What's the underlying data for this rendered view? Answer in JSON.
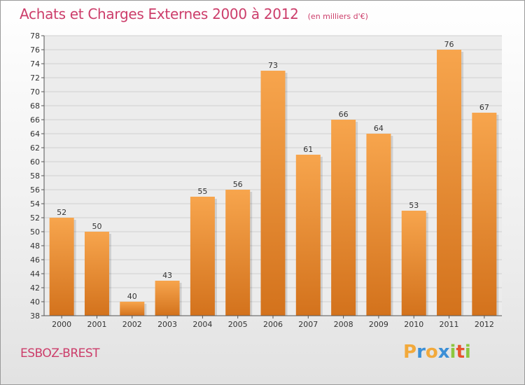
{
  "title": "Achats et Charges Externes 2000 à 2012",
  "unit": "(en milliers d'€)",
  "commune": "ESBOZ-BREST",
  "logo": {
    "text": "Proxiti",
    "letters": [
      {
        "ch": "P",
        "color": "#f2a93b"
      },
      {
        "ch": "r",
        "color": "#3b8fd6"
      },
      {
        "ch": "o",
        "color": "#f2a93b"
      },
      {
        "ch": "x",
        "color": "#3b8fd6"
      },
      {
        "ch": "i",
        "color": "#8cc63f"
      },
      {
        "ch": "t",
        "color": "#e8532d"
      },
      {
        "ch": "i",
        "color": "#8cc63f"
      }
    ]
  },
  "colors": {
    "bar_top": "#f7a54d",
    "bar_bottom": "#d3721c",
    "grid": "#cfcfcf",
    "title": "#cc3d6a"
  },
  "chart_data": {
    "type": "bar",
    "categories": [
      "2000",
      "2001",
      "2002",
      "2003",
      "2004",
      "2005",
      "2006",
      "2007",
      "2008",
      "2009",
      "2010",
      "2011",
      "2012"
    ],
    "values": [
      52,
      50,
      40,
      43,
      55,
      56,
      73,
      61,
      66,
      64,
      53,
      76,
      67
    ],
    "ylim": [
      38,
      78
    ],
    "ytick_step": 2,
    "grid": true
  }
}
